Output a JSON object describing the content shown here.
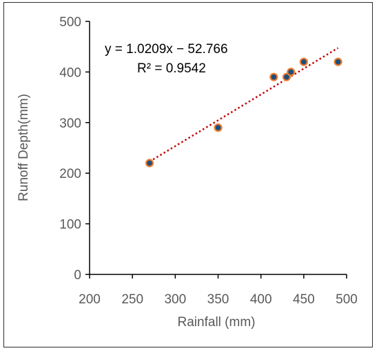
{
  "chart_data": {
    "type": "scatter",
    "title": "",
    "xlabel": "Rainfall (mm)",
    "ylabel": "Runoff Depth(mm)",
    "xlim": [
      200,
      500
    ],
    "ylim": [
      0,
      500
    ],
    "x_ticks": [
      200,
      250,
      300,
      350,
      400,
      450,
      500
    ],
    "y_ticks": [
      0,
      100,
      200,
      300,
      400,
      500
    ],
    "x_tick_labels": [
      "200",
      "250",
      "300",
      "350",
      "400",
      "450",
      "500"
    ],
    "y_tick_labels": [
      "0",
      "100",
      "200",
      "300",
      "400",
      "500"
    ],
    "points": [
      {
        "x": 270,
        "y": 220
      },
      {
        "x": 350,
        "y": 290
      },
      {
        "x": 415,
        "y": 390
      },
      {
        "x": 430,
        "y": 390
      },
      {
        "x": 435,
        "y": 400
      },
      {
        "x": 450,
        "y": 420
      },
      {
        "x": 490,
        "y": 420
      }
    ],
    "trendline": {
      "type": "linear",
      "slope": 1.0209,
      "intercept": -52.766,
      "x_range": [
        270,
        490
      ],
      "equation_label": "y = 1.0209x − 52.766",
      "r2_label": "R² = 0.9542",
      "color": "#c00000",
      "style": "dotted"
    },
    "marker": {
      "fill": "#1f4e79",
      "edge": "#ed7d31"
    },
    "grid": false,
    "legend": "none"
  }
}
